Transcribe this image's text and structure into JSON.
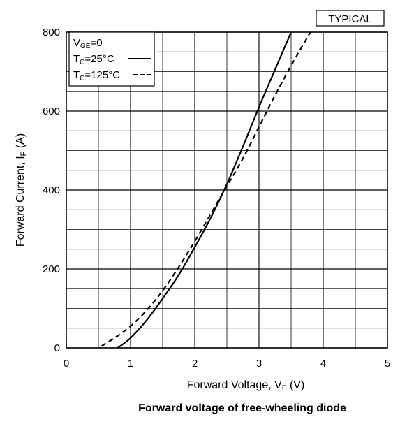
{
  "chart_data": {
    "type": "line",
    "badge": "TYPICAL",
    "title": "Forward voltage of free-wheeling diode",
    "xlabel": {
      "main": "Forward Voltage, V",
      "sub": "F",
      "unit": " (V)"
    },
    "ylabel": {
      "main": "Forward Current, I",
      "sub": "F",
      "unit": " (A)"
    },
    "xlim": [
      0,
      5
    ],
    "ylim": [
      0,
      800
    ],
    "x_ticks": [
      "0",
      "1",
      "2",
      "3",
      "4",
      "5"
    ],
    "y_ticks": [
      "0",
      "200",
      "400",
      "600",
      "800"
    ],
    "grid": true,
    "legend": {
      "position": "top-left",
      "condition": {
        "main": "V",
        "sub": "GE",
        "rest": "=0"
      },
      "entries": [
        {
          "main": "T",
          "sub": "C",
          "rest": "=25°C",
          "style": "solid"
        },
        {
          "main": "T",
          "sub": "C",
          "rest": "=125°C",
          "style": "dashed"
        }
      ]
    },
    "series": [
      {
        "name": "Tc=25°C",
        "style": "solid",
        "x": [
          0.8,
          1.0,
          1.25,
          1.5,
          1.75,
          2.0,
          2.25,
          2.5,
          2.75,
          3.0,
          3.25,
          3.5
        ],
        "y": [
          0,
          25,
          70,
          125,
          185,
          255,
          330,
          415,
          510,
          610,
          705,
          800
        ]
      },
      {
        "name": "Tc=125°C",
        "style": "dashed",
        "x": [
          0.55,
          0.75,
          1.0,
          1.25,
          1.5,
          1.75,
          2.0,
          2.25,
          2.5,
          2.75,
          3.0,
          3.25,
          3.5,
          3.8
        ],
        "y": [
          5,
          25,
          55,
          95,
          145,
          205,
          270,
          340,
          410,
          480,
          560,
          640,
          715,
          800
        ]
      }
    ]
  }
}
